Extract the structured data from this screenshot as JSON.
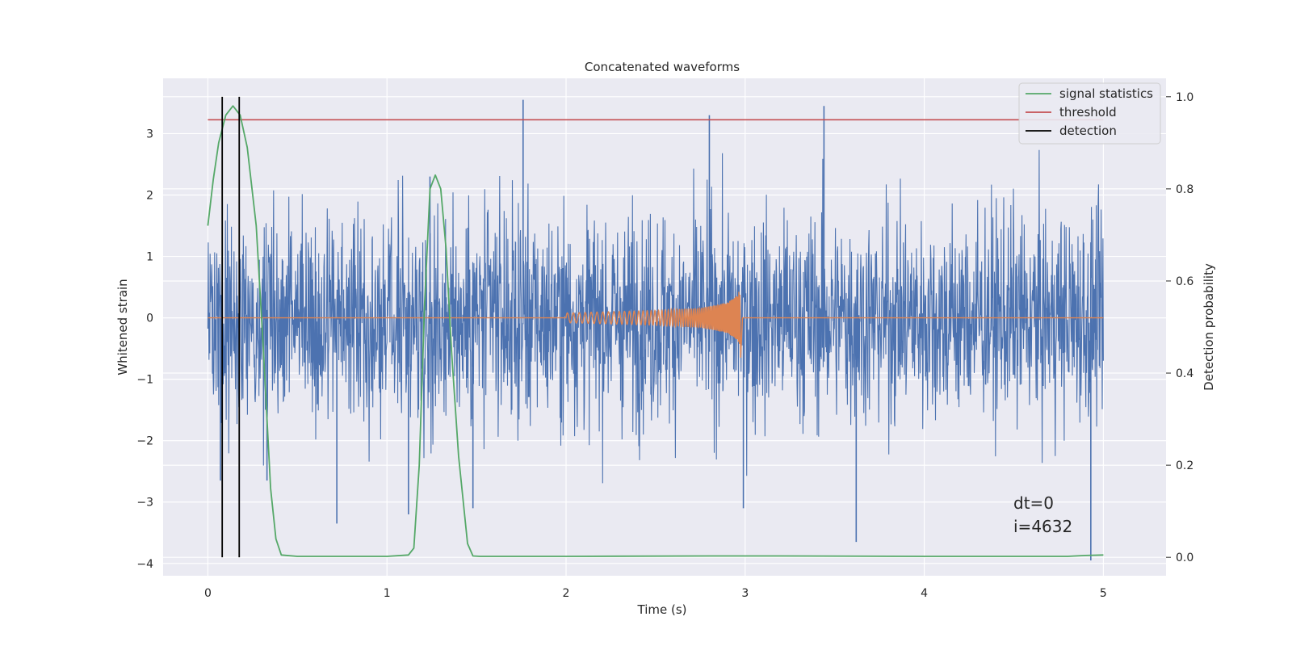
{
  "chart_data": {
    "type": "line",
    "title": "Concatenated waveforms",
    "xlabel": "Time (s)",
    "ylabel": "Whitened strain",
    "y2label": "Detection probability",
    "xlim": [
      -0.25,
      5.35
    ],
    "ylim": [
      -4.2,
      3.9
    ],
    "y2lim": [
      -0.04,
      1.04
    ],
    "xticks": [
      0,
      1,
      2,
      3,
      4,
      5
    ],
    "yticks": [
      -4,
      -3,
      -2,
      -1,
      0,
      1,
      2,
      3
    ],
    "y2ticks": [
      0.0,
      0.2,
      0.4,
      0.6,
      0.8,
      1.0
    ],
    "xtick_labels": [
      "0",
      "1",
      "2",
      "3",
      "4",
      "5"
    ],
    "ytick_labels": [
      "−4",
      "−3",
      "−2",
      "−1",
      "0",
      "1",
      "2",
      "3"
    ],
    "y2tick_labels": [
      "0.0",
      "0.2",
      "0.4",
      "0.6",
      "0.8",
      "1.0"
    ],
    "grid": true,
    "legend_position": "top-right",
    "legend": [
      "signal statistics",
      "threshold",
      "detection"
    ],
    "annotation": [
      "dt=0",
      "i=4632"
    ],
    "colors": {
      "strain": "#4c72b0",
      "injected_signal": "#dd8452",
      "signal_statistics": "#55a868",
      "threshold": "#c44e52",
      "detection": "#000000",
      "background": "#eaeaf2",
      "grid": "#ffffff"
    },
    "series": [
      {
        "axis": "left",
        "description_values": "noise envelope",
        "x": [
          0,
          5
        ],
        "noise_span": [
          -3.95,
          3.55
        ],
        "peaks": [
          {
            "x": 0.07,
            "y": -2.65
          },
          {
            "x": 0.33,
            "y": -2.65
          },
          {
            "x": 0.72,
            "y": -3.35
          },
          {
            "x": 1.12,
            "y": -3.2
          },
          {
            "x": 1.24,
            "y": 2.3
          },
          {
            "x": 1.48,
            "y": -3.1
          },
          {
            "x": 1.76,
            "y": 3.55
          },
          {
            "x": 2.8,
            "y": 3.3
          },
          {
            "x": 2.99,
            "y": -3.1
          },
          {
            "x": 3.44,
            "y": 3.45
          },
          {
            "x": 3.62,
            "y": -3.65
          },
          {
            "x": 4.93,
            "y": -3.95
          }
        ]
      },
      {
        "axis": "left",
        "description_values": "injected chirp",
        "x": [
          2.0,
          2.25,
          2.5,
          2.75,
          2.9,
          2.95,
          2.97,
          3.0
        ],
        "amplitude": [
          0.08,
          0.1,
          0.12,
          0.16,
          0.25,
          0.35,
          0.45,
          0.0
        ]
      },
      {
        "name": "signal statistics",
        "axis": "right",
        "x": [
          0,
          0.03,
          0.06,
          0.1,
          0.14,
          0.18,
          0.22,
          0.27,
          0.31,
          0.35,
          0.38,
          0.41,
          0.5,
          1.0,
          1.12,
          1.15,
          1.18,
          1.21,
          1.24,
          1.27,
          1.3,
          1.33,
          1.36,
          1.4,
          1.45,
          1.48,
          1.52,
          2.0,
          2.8,
          3.2,
          4.0,
          4.8,
          4.9,
          5.0
        ],
        "values": [
          0.72,
          0.82,
          0.9,
          0.96,
          0.98,
          0.96,
          0.89,
          0.72,
          0.45,
          0.15,
          0.04,
          0.005,
          0.002,
          0.002,
          0.005,
          0.02,
          0.2,
          0.55,
          0.8,
          0.83,
          0.8,
          0.67,
          0.45,
          0.22,
          0.03,
          0.003,
          0.002,
          0.002,
          0.003,
          0.003,
          0.002,
          0.002,
          0.004,
          0.005
        ]
      },
      {
        "name": "threshold",
        "axis": "right",
        "x": [
          0,
          5
        ],
        "values": [
          0.95,
          0.95
        ]
      },
      {
        "name": "detection",
        "axis": "right",
        "x": [
          0.08,
          0.175
        ],
        "values": [
          1.0,
          1.0
        ]
      }
    ]
  }
}
